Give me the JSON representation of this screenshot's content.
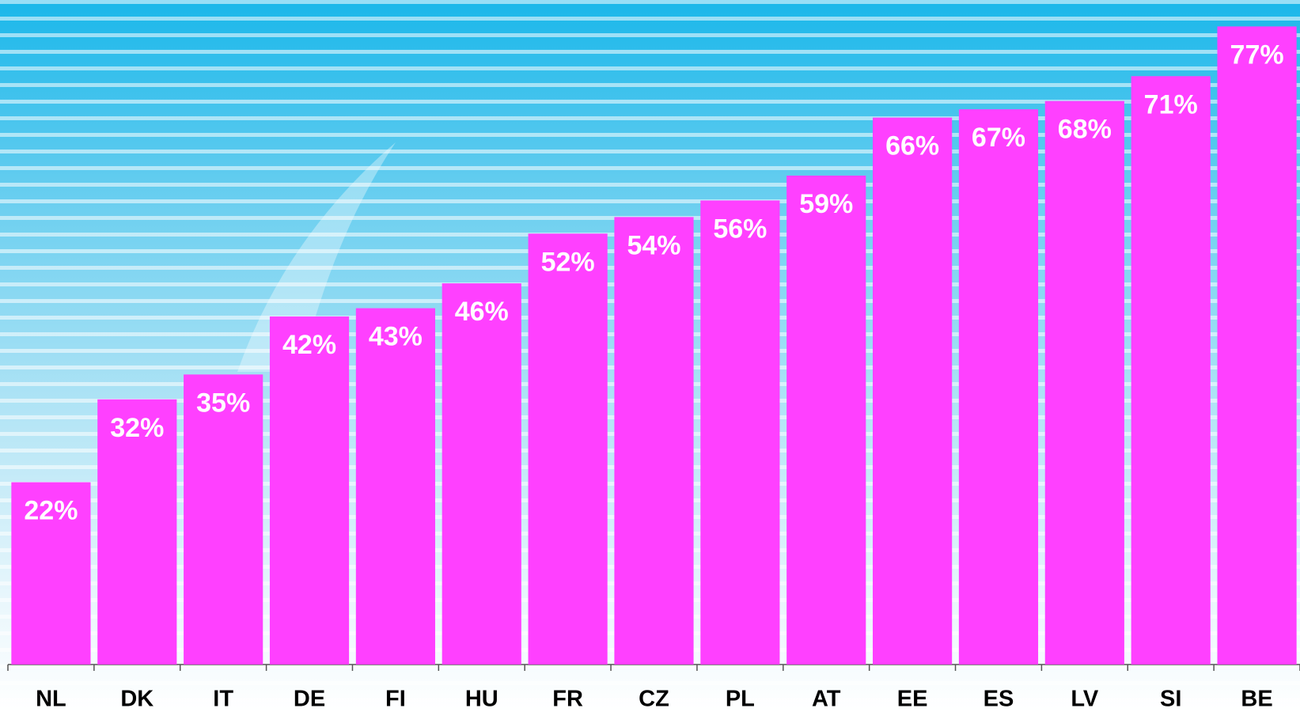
{
  "chart_data": {
    "type": "bar",
    "categories": [
      "NL",
      "DK",
      "IT",
      "DE",
      "FI",
      "HU",
      "FR",
      "CZ",
      "PL",
      "AT",
      "EE",
      "ES",
      "LV",
      "SI",
      "BE"
    ],
    "values": [
      22,
      32,
      35,
      42,
      43,
      46,
      52,
      54,
      56,
      59,
      66,
      67,
      68,
      71,
      77
    ],
    "value_labels": [
      "22%",
      "32%",
      "35%",
      "42%",
      "43%",
      "46%",
      "52%",
      "54%",
      "56%",
      "59%",
      "66%",
      "67%",
      "68%",
      "71%",
      "77%"
    ],
    "color": "#ff40ff",
    "ylim": [
      0,
      80
    ]
  }
}
